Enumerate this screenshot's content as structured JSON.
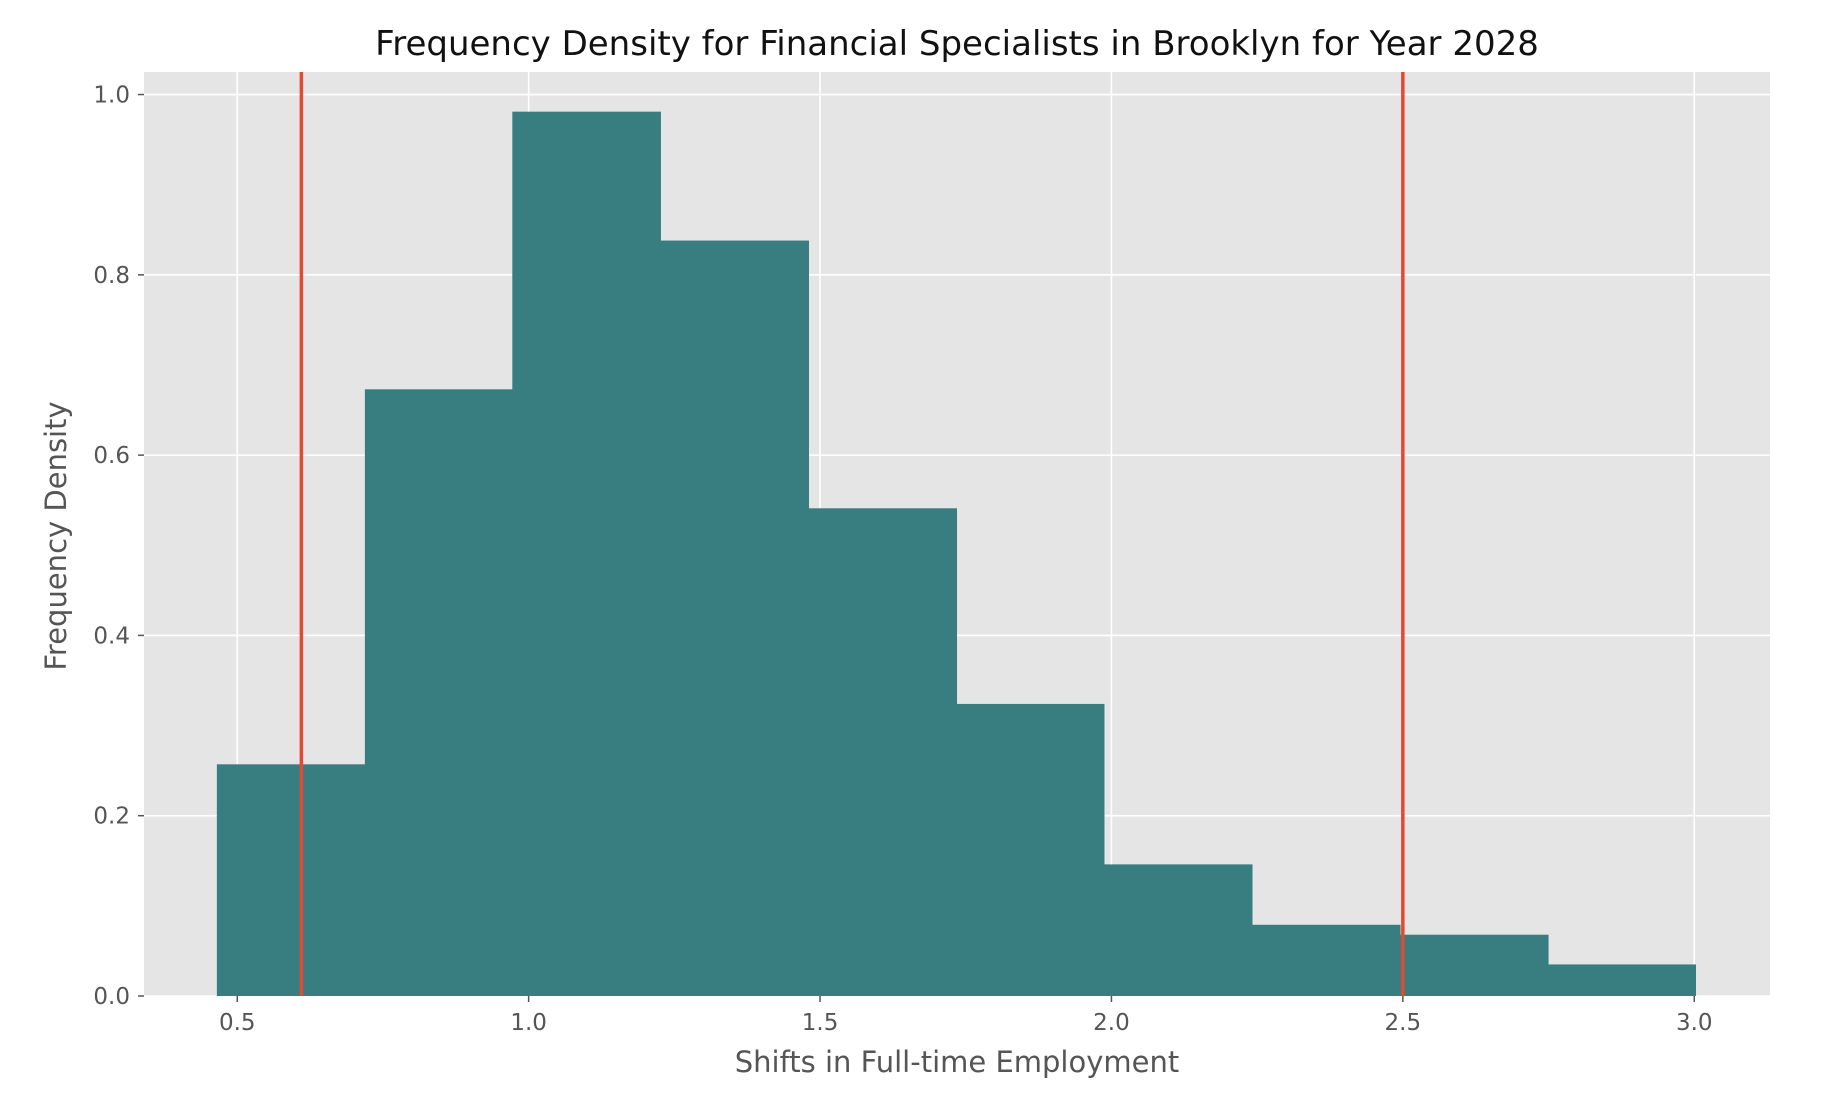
{
  "chart_data": {
    "type": "bar",
    "title": "Frequency Density for Financial Specialists in Brooklyn for Year 2028",
    "xlabel": "Shifts in Full-time Employment",
    "ylabel": "Frequency Density",
    "xlim": [
      0.34,
      3.13
    ],
    "ylim": [
      0.0,
      1.025
    ],
    "xticks": [
      0.5,
      1.0,
      1.5,
      2.0,
      2.5,
      3.0
    ],
    "xtick_labels": [
      "0.5",
      "1.0",
      "1.5",
      "2.0",
      "2.5",
      "3.0"
    ],
    "yticks": [
      0.0,
      0.2,
      0.4,
      0.6,
      0.8,
      1.0
    ],
    "ytick_labels": [
      "0.0",
      "0.2",
      "0.4",
      "0.6",
      "0.8",
      "1.0"
    ],
    "bins": [
      {
        "x0": 0.465,
        "x1": 0.719,
        "value": 0.257
      },
      {
        "x0": 0.719,
        "x1": 0.972,
        "value": 0.673
      },
      {
        "x0": 0.972,
        "x1": 1.226,
        "value": 0.981
      },
      {
        "x0": 1.226,
        "x1": 1.48,
        "value": 0.838
      },
      {
        "x0": 1.48,
        "x1": 1.734,
        "value": 0.541
      },
      {
        "x0": 1.734,
        "x1": 1.987,
        "value": 0.324
      },
      {
        "x0": 1.987,
        "x1": 2.241,
        "value": 0.146
      },
      {
        "x0": 2.241,
        "x1": 2.495,
        "value": 0.079
      },
      {
        "x0": 2.495,
        "x1": 2.749,
        "value": 0.068
      },
      {
        "x0": 2.749,
        "x1": 3.002,
        "value": 0.035
      }
    ],
    "vertical_lines": [
      0.61,
      2.5
    ],
    "grid": true,
    "colors": {
      "bar": "#387d7f",
      "vline": "#e24a33",
      "plot_background": "#e5e5e5",
      "grid": "#ffffff"
    }
  }
}
